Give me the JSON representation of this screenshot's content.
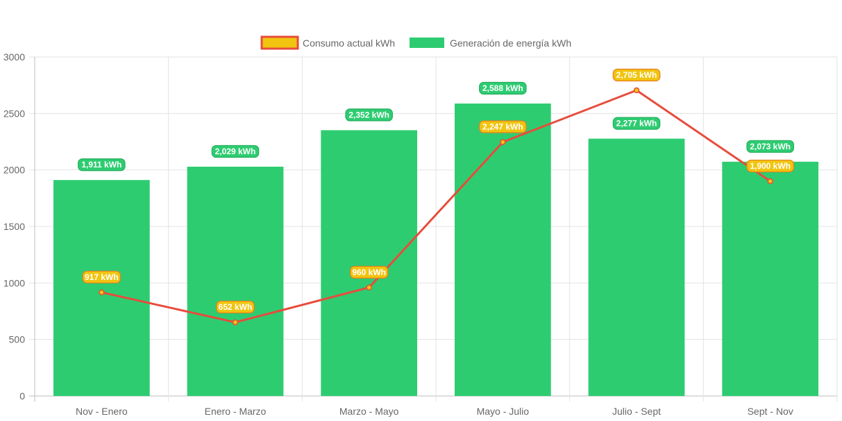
{
  "chart_data": {
    "type": "bar",
    "categories": [
      "Nov - Enero",
      "Enero - Marzo",
      "Marzo - Mayo",
      "Mayo - Julio",
      "Julio - Sept",
      "Sept - Nov"
    ],
    "series": [
      {
        "name": "Consumo actual kWh",
        "type": "line",
        "values": [
          917,
          652,
          960,
          2247,
          2705,
          1900
        ],
        "labels": [
          "917 kWh",
          "652 kWh",
          "960 kWh",
          "2,247 kWh",
          "2,705 kWh",
          "1,900 kWh"
        ],
        "color": "#e74c3c",
        "fill": "#f1c40f"
      },
      {
        "name": "Generación de energía kWh",
        "type": "bar",
        "values": [
          1911,
          2029,
          2352,
          2588,
          2277,
          2073
        ],
        "labels": [
          "1,911 kWh",
          "2,029 kWh",
          "2,352 kWh",
          "2,588 kWh",
          "2,277 kWh",
          "2,073 kWh"
        ],
        "color": "#2ecc71"
      }
    ],
    "ylim": [
      0,
      3000
    ],
    "yticks": [
      "0",
      "500",
      "1000",
      "1500",
      "2000",
      "2500",
      "3000"
    ],
    "grid": true,
    "legend": "top-center"
  }
}
